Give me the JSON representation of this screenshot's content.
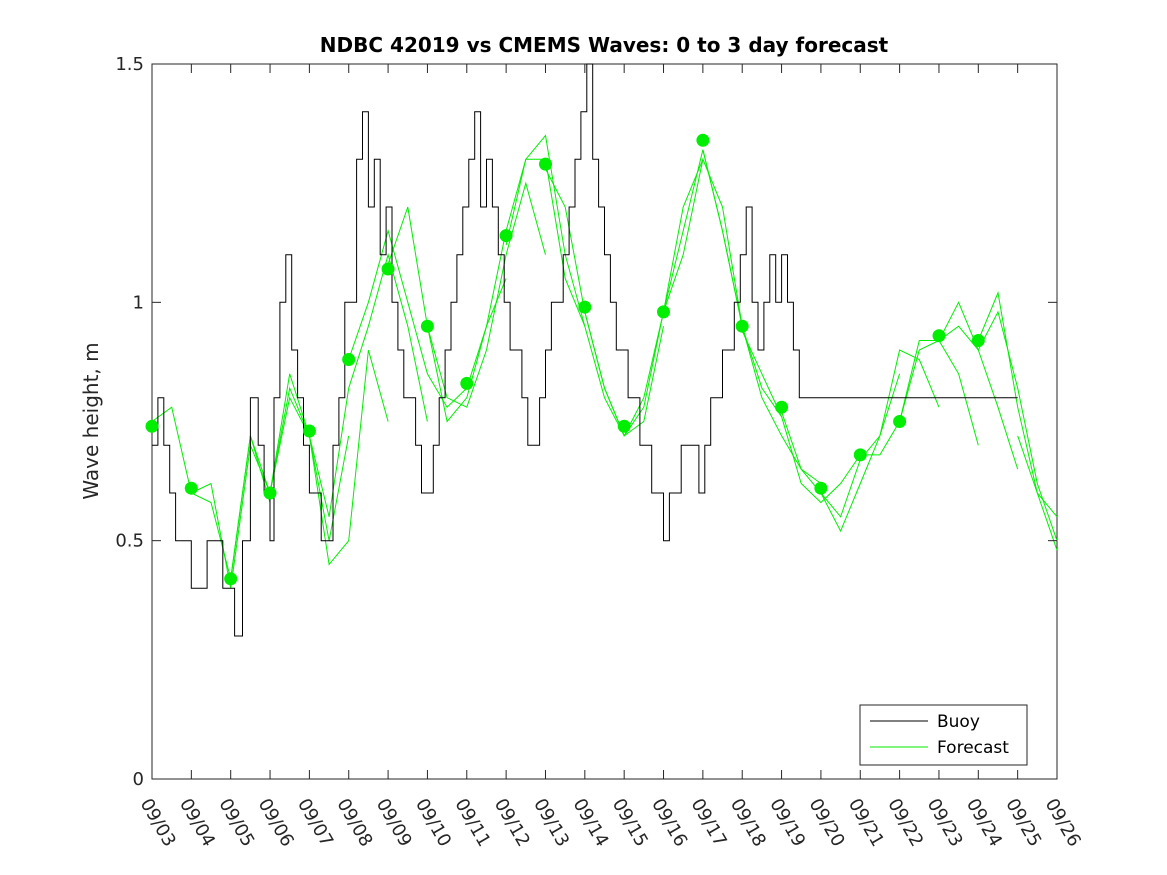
{
  "chart_data": {
    "type": "line",
    "title": "NDBC 42019 vs CMEMS Waves: 0 to 3 day forecast",
    "xlabel": "",
    "ylabel": "Wave height, m",
    "ylim": [
      0,
      1.5
    ],
    "xlim": [
      0,
      23
    ],
    "y_ticks": [
      "0",
      "0.5",
      "1",
      "1.5"
    ],
    "x_ticks": [
      "09/03",
      "09/04",
      "09/05",
      "09/06",
      "09/07",
      "09/08",
      "09/09",
      "09/10",
      "09/11",
      "09/12",
      "09/13",
      "09/14",
      "09/15",
      "09/16",
      "09/17",
      "09/18",
      "09/19",
      "09/20",
      "09/21",
      "09/22",
      "09/23",
      "09/24",
      "09/25",
      "09/26"
    ],
    "grid": false,
    "legend_position": "bottom-right",
    "colors": {
      "buoy": "#000000",
      "forecast": "#00ee00",
      "markers": "#00ee00"
    },
    "buoy": {
      "name": "Buoy",
      "x": [
        0,
        0.15,
        0.3,
        0.45,
        0.6,
        0.8,
        1.0,
        1.2,
        1.4,
        1.6,
        1.8,
        2.0,
        2.1,
        2.3,
        2.5,
        2.7,
        2.85,
        3.0,
        3.1,
        3.25,
        3.4,
        3.55,
        3.7,
        3.85,
        4.0,
        4.15,
        4.3,
        4.45,
        4.6,
        4.75,
        4.9,
        5.05,
        5.2,
        5.35,
        5.5,
        5.65,
        5.8,
        5.95,
        6.1,
        6.25,
        6.4,
        6.55,
        6.7,
        6.85,
        7.0,
        7.15,
        7.3,
        7.45,
        7.6,
        7.75,
        7.9,
        8.05,
        8.2,
        8.35,
        8.5,
        8.65,
        8.8,
        8.95,
        9.1,
        9.25,
        9.4,
        9.55,
        9.7,
        9.85,
        10.0,
        10.15,
        10.3,
        10.45,
        10.6,
        10.75,
        10.9,
        11.05,
        11.2,
        11.35,
        11.5,
        11.65,
        11.8,
        11.95,
        12.1,
        12.25,
        12.4,
        12.55,
        12.7,
        12.85,
        13.0,
        13.15,
        13.3,
        13.45,
        13.6,
        13.75,
        13.9,
        14.05,
        14.2,
        14.35,
        14.5,
        14.65,
        14.8,
        14.95,
        15.1,
        15.25,
        15.4,
        15.55,
        15.7,
        15.85,
        16.0,
        16.15,
        16.3,
        16.45,
        16.6,
        16.75,
        16.9,
        17.05,
        17.2,
        17.35,
        17.5,
        17.65,
        17.8,
        17.95,
        18.1,
        18.25,
        18.4,
        18.55,
        18.7,
        18.85,
        19.0,
        19.15,
        19.3,
        19.45,
        19.6,
        19.75,
        19.9,
        20.05,
        20.2,
        20.35,
        20.5,
        20.65,
        20.8,
        20.95,
        21.1,
        21.25,
        21.4,
        21.55,
        21.7,
        21.85,
        22.0
      ],
      "y": [
        0.7,
        0.8,
        0.7,
        0.6,
        0.5,
        0.5,
        0.4,
        0.4,
        0.5,
        0.5,
        0.4,
        0.4,
        0.3,
        0.5,
        0.8,
        0.7,
        0.6,
        0.5,
        0.8,
        1.0,
        1.1,
        0.9,
        0.8,
        0.7,
        0.6,
        0.6,
        0.5,
        0.5,
        0.7,
        0.8,
        1.0,
        1.0,
        1.3,
        1.4,
        1.2,
        1.3,
        1.1,
        1.2,
        1.0,
        0.9,
        0.8,
        0.8,
        0.7,
        0.6,
        0.6,
        0.7,
        0.8,
        0.9,
        1.0,
        1.1,
        1.2,
        1.3,
        1.4,
        1.2,
        1.3,
        1.2,
        1.1,
        1.0,
        0.9,
        0.9,
        0.8,
        0.7,
        0.7,
        0.8,
        0.9,
        1.0,
        1.0,
        1.1,
        1.2,
        1.3,
        1.4,
        1.5,
        1.3,
        1.2,
        1.1,
        1.0,
        0.9,
        0.9,
        0.8,
        0.8,
        0.7,
        0.7,
        0.6,
        0.6,
        0.5,
        0.6,
        0.6,
        0.7,
        0.7,
        0.7,
        0.6,
        0.7,
        0.8,
        0.8,
        0.9,
        0.9,
        1.0,
        1.1,
        1.2,
        1.0,
        0.9,
        1.0,
        1.1,
        1.0,
        1.1,
        1.0,
        0.9,
        0.8,
        0.8,
        0.8,
        0.8,
        0.8,
        0.8,
        0.8,
        0.8,
        0.8,
        0.8,
        0.8,
        0.8,
        0.8,
        0.8,
        0.8,
        0.8,
        0.8,
        0.8,
        0.8,
        0.8,
        0.8,
        0.8,
        0.8,
        0.8,
        0.8,
        0.8,
        0.8,
        0.8,
        0.8,
        0.8,
        0.8,
        0.8,
        0.8,
        0.8,
        0.8,
        0.8,
        0.8,
        0.8
      ]
    },
    "forecasts": [
      {
        "x": [
          0,
          0.5,
          1.0,
          1.5,
          2.0,
          2.5,
          3.0
        ],
        "y": [
          0.75,
          0.78,
          0.6,
          0.58,
          0.42,
          0.72,
          0.58
        ]
      },
      {
        "x": [
          1.0,
          1.5,
          2.0,
          2.5,
          3.0,
          3.5,
          4.0
        ],
        "y": [
          0.6,
          0.62,
          0.4,
          0.7,
          0.6,
          0.85,
          0.72
        ]
      },
      {
        "x": [
          2.0,
          2.5,
          3.0,
          3.5,
          4.0,
          4.5,
          5.0
        ],
        "y": [
          0.42,
          0.72,
          0.6,
          0.82,
          0.72,
          0.5,
          0.72
        ]
      },
      {
        "x": [
          3.0,
          3.5,
          4.0,
          4.5,
          5.0,
          5.5,
          6.0
        ],
        "y": [
          0.6,
          0.8,
          0.72,
          0.45,
          0.5,
          0.9,
          0.75
        ]
      },
      {
        "x": [
          4.0,
          4.5,
          5.0,
          5.5,
          6.0,
          6.5,
          7.0
        ],
        "y": [
          0.72,
          0.55,
          0.82,
          0.95,
          1.1,
          0.95,
          0.75
        ]
      },
      {
        "x": [
          5.0,
          5.5,
          6.0,
          6.5,
          7.0,
          7.5,
          8.0
        ],
        "y": [
          0.88,
          1.0,
          1.15,
          1.0,
          0.85,
          0.78,
          0.82
        ]
      },
      {
        "x": [
          6.0,
          6.5,
          7.0,
          7.5,
          8.0,
          8.5,
          9.0
        ],
        "y": [
          1.08,
          1.2,
          0.95,
          0.75,
          0.8,
          0.95,
          1.05
        ]
      },
      {
        "x": [
          7.0,
          7.5,
          8.0,
          8.5,
          9.0,
          9.5,
          10.0
        ],
        "y": [
          0.95,
          0.8,
          0.78,
          0.9,
          1.1,
          1.25,
          1.1
        ]
      },
      {
        "x": [
          8.0,
          8.5,
          9.0,
          9.5,
          10.0,
          10.5,
          11.0
        ],
        "y": [
          0.82,
          0.95,
          1.15,
          1.3,
          1.3,
          1.05,
          0.95
        ]
      },
      {
        "x": [
          9.0,
          9.5,
          10.0,
          10.5,
          11.0,
          11.5,
          12.0
        ],
        "y": [
          1.12,
          1.3,
          1.35,
          1.1,
          0.95,
          0.8,
          0.72
        ]
      },
      {
        "x": [
          10.0,
          10.5,
          11.0,
          11.5,
          12.0,
          12.5,
          13.0
        ],
        "y": [
          1.28,
          1.2,
          0.98,
          0.82,
          0.72,
          0.75,
          0.95
        ]
      },
      {
        "x": [
          11.0,
          11.5,
          12.0,
          12.5,
          13.0,
          13.5,
          14.0
        ],
        "y": [
          0.98,
          0.82,
          0.72,
          0.78,
          0.98,
          1.2,
          1.3
        ]
      },
      {
        "x": [
          12.0,
          12.5,
          13.0,
          13.5,
          14.0,
          14.5,
          15.0
        ],
        "y": [
          0.72,
          0.8,
          0.98,
          1.15,
          1.32,
          1.15,
          0.95
        ]
      },
      {
        "x": [
          13.0,
          13.5,
          14.0,
          14.5,
          15.0,
          15.5,
          16.0
        ],
        "y": [
          0.98,
          1.1,
          1.3,
          1.2,
          0.95,
          0.82,
          0.76
        ]
      },
      {
        "x": [
          14.0,
          14.5,
          15.0,
          15.5,
          16.0,
          16.5,
          17.0
        ],
        "y": [
          1.32,
          1.15,
          0.95,
          0.8,
          0.72,
          0.65,
          0.62
        ]
      },
      {
        "x": [
          15.0,
          15.5,
          16.0,
          16.5,
          17.0,
          17.5,
          18.0
        ],
        "y": [
          0.94,
          0.85,
          0.76,
          0.62,
          0.58,
          0.62,
          0.68
        ]
      },
      {
        "x": [
          16.0,
          16.5,
          17.0,
          17.5,
          18.0,
          18.5,
          19.0
        ],
        "y": [
          0.77,
          0.65,
          0.6,
          0.52,
          0.62,
          0.72,
          0.85
        ]
      },
      {
        "x": [
          17.0,
          17.5,
          18.0,
          18.5,
          19.0,
          19.5,
          20.0
        ],
        "y": [
          0.6,
          0.55,
          0.67,
          0.72,
          0.9,
          0.88,
          0.78
        ]
      },
      {
        "x": [
          18.0,
          18.5,
          19.0,
          19.5,
          20.0,
          20.5,
          21.0
        ],
        "y": [
          0.68,
          0.68,
          0.75,
          0.92,
          0.92,
          0.85,
          0.7
        ]
      },
      {
        "x": [
          19.0,
          19.5,
          20.0,
          20.5,
          21.0,
          21.5,
          22.0
        ],
        "y": [
          0.75,
          0.9,
          0.92,
          1.0,
          0.9,
          0.78,
          0.65
        ]
      },
      {
        "x": [
          20.0,
          20.5,
          21.0,
          21.5,
          22.0,
          22.5,
          23.0
        ],
        "y": [
          0.92,
          0.95,
          0.9,
          0.98,
          0.82,
          0.62,
          0.5
        ]
      },
      {
        "x": [
          21.0,
          21.5,
          22.0,
          22.5,
          23.0
        ],
        "y": [
          0.92,
          1.02,
          0.78,
          0.6,
          0.55
        ]
      },
      {
        "x": [
          22.0,
          22.5,
          23.0
        ],
        "y": [
          0.72,
          0.6,
          0.48
        ]
      }
    ],
    "markers": {
      "x": [
        0,
        1,
        2,
        3,
        4,
        5,
        6,
        7,
        8,
        9,
        10,
        11,
        12,
        13,
        14,
        15,
        16,
        17,
        18,
        19,
        20,
        21
      ],
      "y": [
        0.74,
        0.61,
        0.42,
        0.6,
        0.73,
        0.88,
        1.07,
        0.95,
        0.83,
        1.14,
        1.29,
        0.99,
        0.74,
        0.98,
        1.34,
        0.95,
        0.78,
        0.61,
        0.68,
        0.75,
        0.93,
        0.92
      ]
    },
    "legend": {
      "buoy": "Buoy",
      "forecast": "Forecast"
    }
  }
}
